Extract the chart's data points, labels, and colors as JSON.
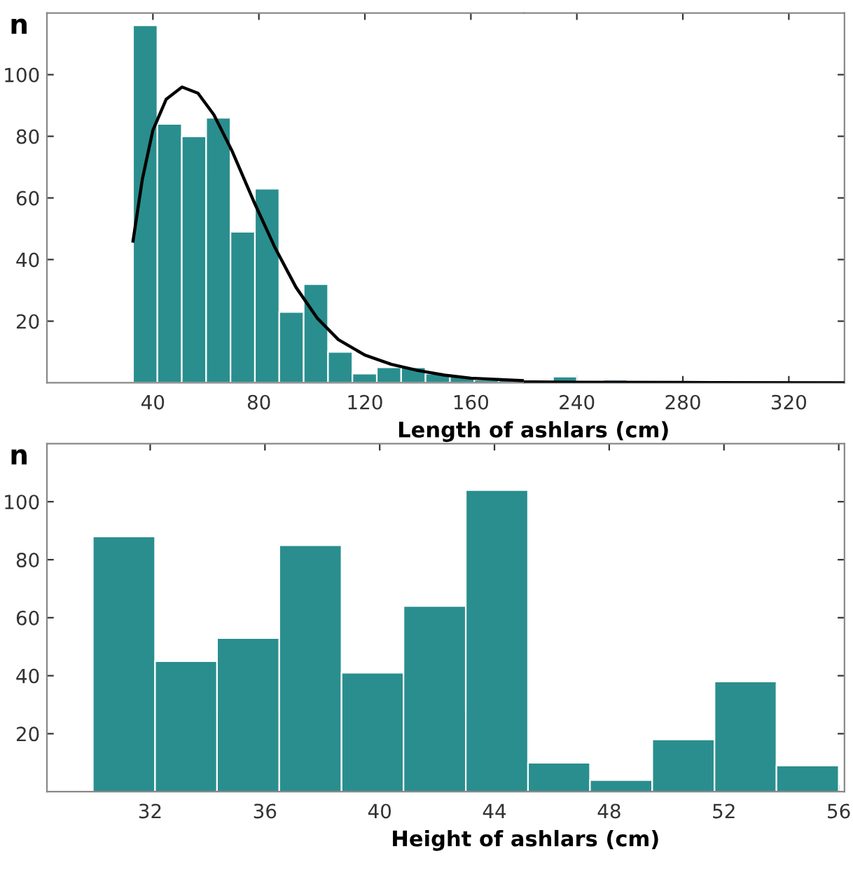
{
  "chart_data": [
    {
      "type": "histogram",
      "ylabel": "n",
      "color": "#2a8e8e",
      "bins": [
        32.5,
        41.7,
        50.9,
        60.1,
        69.3,
        78.5,
        87.7,
        96.9,
        106.1,
        115.3,
        124.5,
        133.7,
        142.9,
        152.1,
        161.3,
        170.5,
        179.7
      ],
      "values": [
        116,
        84,
        80,
        86,
        49,
        63,
        23,
        32,
        10,
        3,
        5,
        5,
        3,
        2,
        1,
        1
      ],
      "series": [
        {
          "type": "line",
          "color": "#000000",
          "x": [
            32.5,
            36,
            40,
            45,
            51,
            57,
            63,
            70,
            78,
            86,
            94,
            102,
            110,
            120,
            130,
            140,
            150,
            160,
            180
          ],
          "values": [
            46,
            66,
            82,
            92,
            96,
            94,
            87,
            75,
            59,
            44,
            31,
            21,
            14,
            9,
            6,
            4,
            2.5,
            1.5,
            0.7
          ]
        }
      ],
      "xlim": [
        0,
        180
      ],
      "xticks": [
        40,
        80,
        120,
        160
      ],
      "ylim": [
        0,
        120
      ],
      "yticks": [
        20,
        40,
        60,
        80,
        100
      ],
      "grid": false,
      "legend": false
    },
    {
      "type": "histogram",
      "xlabel": "Length of ashlars (cm)",
      "color": "#2a8e8e",
      "bins": [
        231,
        240,
        250,
        259
      ],
      "values": [
        2,
        0,
        1
      ],
      "series": [
        {
          "type": "line",
          "color": "#000000",
          "x": [
            220,
            240,
            280,
            341
          ],
          "values": [
            0.3,
            0.2,
            0.1,
            0
          ]
        }
      ],
      "xlim": [
        220,
        341
      ],
      "xticks": [
        240,
        280,
        320
      ],
      "ylim": [
        0,
        120
      ],
      "tick_labels": "x",
      "grid": false,
      "legend": false
    },
    {
      "type": "histogram",
      "xlabel": "Height of ashlars (cm)",
      "ylabel": "n",
      "color": "#2a8e8e",
      "bins": [
        30,
        32.17,
        34.33,
        36.5,
        38.67,
        40.83,
        43,
        45.17,
        47.33,
        49.5,
        51.67,
        53.83,
        56
      ],
      "values": [
        88,
        45,
        53,
        85,
        41,
        64,
        104,
        10,
        4,
        18,
        38,
        9
      ],
      "xlim": [
        28.4,
        56.2
      ],
      "xticks": [
        32,
        36,
        40,
        44,
        48,
        52,
        56
      ],
      "ylim": [
        0,
        120
      ],
      "yticks": [
        20,
        40,
        60,
        80,
        100
      ],
      "grid": false,
      "legend": false
    }
  ]
}
